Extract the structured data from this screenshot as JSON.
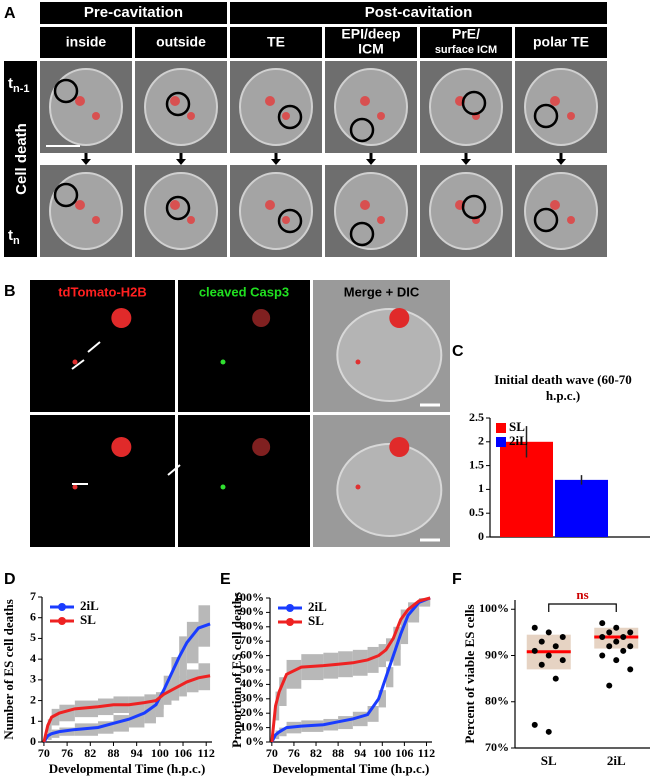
{
  "panel_labels": [
    "A",
    "B",
    "C",
    "D",
    "E",
    "F"
  ],
  "panel_a": {
    "group_headers": [
      "Pre-cavitation",
      "Post-cavitation"
    ],
    "columns": [
      [
        "inside"
      ],
      [
        "outside"
      ],
      [
        "TE"
      ],
      [
        "EPI/deep",
        "ICM"
      ],
      [
        "PrE/",
        "surface ICM"
      ],
      [
        "polar TE"
      ]
    ],
    "row_label": "Cell death",
    "rows": [
      {
        "base": "t",
        "sub": "n-1"
      },
      {
        "base": "t",
        "sub": "n"
      }
    ]
  },
  "panel_b": {
    "channels": [
      {
        "label": "tdTomato-H2B",
        "color": "#ff2020"
      },
      {
        "label": "cleaved Casp3",
        "color": "#20e020"
      },
      {
        "label": "Merge + DIC",
        "color": "#000000"
      }
    ]
  },
  "chart_data": [
    {
      "type": "bar",
      "title": "Initial death wave (60-70 h.p.c.)",
      "series": [
        {
          "name": "SL",
          "color": "#ff0000",
          "values": [
            2
          ],
          "errors": [
            0.33
          ]
        },
        {
          "name": "2iL",
          "color": "#0000ff",
          "values": [
            1.2
          ],
          "errors": [
            0.1
          ]
        }
      ],
      "ylim": [
        0,
        2.5
      ],
      "yticks": [
        0,
        0.5,
        1,
        1.5,
        2,
        2.5
      ],
      "legend": "upper left"
    },
    {
      "type": "line",
      "ylabel": "Number of ES cell deaths",
      "xlabel": "Developmental Time (h.p.c.)",
      "x": [
        70,
        71,
        72,
        74,
        78,
        84,
        88,
        92,
        96,
        99,
        101,
        103,
        105,
        107,
        110,
        113
      ],
      "series": [
        {
          "name": "2iL",
          "color": "#1a3cff",
          "values": [
            0,
            0.3,
            0.4,
            0.5,
            0.6,
            0.7,
            0.9,
            1.1,
            1.4,
            1.8,
            2.5,
            3.3,
            4.1,
            4.8,
            5.5,
            5.7
          ],
          "band_lower": [
            0,
            0.1,
            0.2,
            0.3,
            0.3,
            0.4,
            0.5,
            0.7,
            0.9,
            1.2,
            1.8,
            2.5,
            3.1,
            3.8,
            4.6,
            4.7
          ],
          "band_upper": [
            0,
            0.5,
            0.6,
            0.7,
            0.9,
            1.0,
            1.3,
            1.5,
            1.9,
            2.4,
            3.2,
            4.1,
            5.1,
            5.8,
            6.6,
            6.7
          ]
        },
        {
          "name": "SL",
          "color": "#ee2222",
          "values": [
            0,
            0.8,
            1.2,
            1.4,
            1.6,
            1.7,
            1.8,
            1.8,
            1.9,
            2.0,
            2.3,
            2.5,
            2.7,
            2.9,
            3.1,
            3.2
          ],
          "band_lower": [
            0,
            0.5,
            0.8,
            1.0,
            1.2,
            1.3,
            1.4,
            1.4,
            1.5,
            1.6,
            1.8,
            2.0,
            2.2,
            2.4,
            2.5,
            2.6
          ],
          "band_upper": [
            0,
            1.1,
            1.6,
            1.8,
            2.0,
            2.1,
            2.2,
            2.2,
            2.3,
            2.4,
            2.8,
            3.0,
            3.2,
            3.5,
            3.8,
            3.9
          ]
        }
      ],
      "band_color": "#b8b8b8",
      "xlim": [
        69.5,
        113.5
      ],
      "xticks": [
        70,
        76,
        82,
        88,
        94,
        100,
        106,
        112
      ],
      "ylim": [
        0,
        7
      ],
      "yticks": [
        0,
        1,
        2,
        3,
        4,
        5,
        6,
        7
      ],
      "legend": "upper left"
    },
    {
      "type": "line",
      "ylabel": "Proportion of ES cell deaths",
      "xlabel": "Developmental Time (h.p.c.)",
      "x": [
        70,
        71,
        72,
        74,
        78,
        84,
        88,
        92,
        96,
        99,
        101,
        103,
        105,
        107,
        110,
        113
      ],
      "series": [
        {
          "name": "2iL",
          "color": "#1a3cff",
          "values": [
            0,
            5,
            7,
            10,
            11,
            12,
            14,
            16,
            19,
            30,
            45,
            60,
            75,
            88,
            97,
            100
          ],
          "band_lower": [
            0,
            2,
            4,
            6,
            7,
            8,
            9,
            11,
            14,
            24,
            38,
            53,
            68,
            83,
            94,
            100
          ],
          "band_upper": [
            0,
            8,
            10,
            14,
            15,
            16,
            18,
            21,
            25,
            36,
            52,
            67,
            82,
            93,
            100,
            100
          ]
        },
        {
          "name": "SL",
          "color": "#ee2222",
          "values": [
            0,
            25,
            35,
            47,
            52,
            53,
            54,
            55,
            57,
            60,
            64,
            72,
            85,
            92,
            98,
            100
          ],
          "band_lower": [
            0,
            15,
            25,
            37,
            43,
            44,
            45,
            46,
            48,
            52,
            56,
            64,
            78,
            87,
            95,
            100
          ],
          "band_upper": [
            0,
            35,
            45,
            57,
            61,
            62,
            63,
            64,
            66,
            68,
            72,
            80,
            92,
            97,
            100,
            100
          ]
        }
      ],
      "band_color": "#b8b8b8",
      "xlim": [
        69.5,
        113.5
      ],
      "xticks": [
        70,
        76,
        82,
        88,
        94,
        100,
        106,
        112
      ],
      "ylim": [
        0,
        100
      ],
      "yticks": [
        {
          "value": 0,
          "label": "0%"
        },
        {
          "value": 10,
          "label": "10%"
        },
        {
          "value": 20,
          "label": "20%"
        },
        {
          "value": 30,
          "label": "30%"
        },
        {
          "value": 40,
          "label": "40%"
        },
        {
          "value": 50,
          "label": "50%"
        },
        {
          "value": 60,
          "label": "60%"
        },
        {
          "value": 70,
          "label": "70%"
        },
        {
          "value": 80,
          "label": "80%"
        },
        {
          "value": 90,
          "label": "90%"
        },
        {
          "value": 100,
          "label": "100%"
        }
      ],
      "legend": "upper left"
    },
    {
      "type": "strip",
      "ylabel": "Percent of viable ES cells",
      "categories": [
        "SL",
        "2iL"
      ],
      "points": [
        [
          96,
          95,
          94,
          93,
          92,
          91,
          90,
          89,
          88,
          85,
          75,
          73.5
        ],
        [
          97,
          96,
          95,
          95,
          94,
          94,
          93,
          92,
          92,
          91,
          90,
          89,
          87,
          83.5
        ]
      ],
      "medians": [
        90.8,
        94
      ],
      "box_lower": [
        87,
        91.5
      ],
      "box_upper": [
        94.5,
        96
      ],
      "point_color": "#000000",
      "median_color": "#ff0000",
      "box_color": "#e6d3c3",
      "annotation": "ns",
      "annotation_color": "#cc0000",
      "ylim": [
        70,
        102
      ],
      "yticks": [
        {
          "value": 70,
          "label": "70%"
        },
        {
          "value": 80,
          "label": "80%"
        },
        {
          "value": 90,
          "label": "90%"
        },
        {
          "value": 100,
          "label": "100%"
        }
      ]
    }
  ]
}
